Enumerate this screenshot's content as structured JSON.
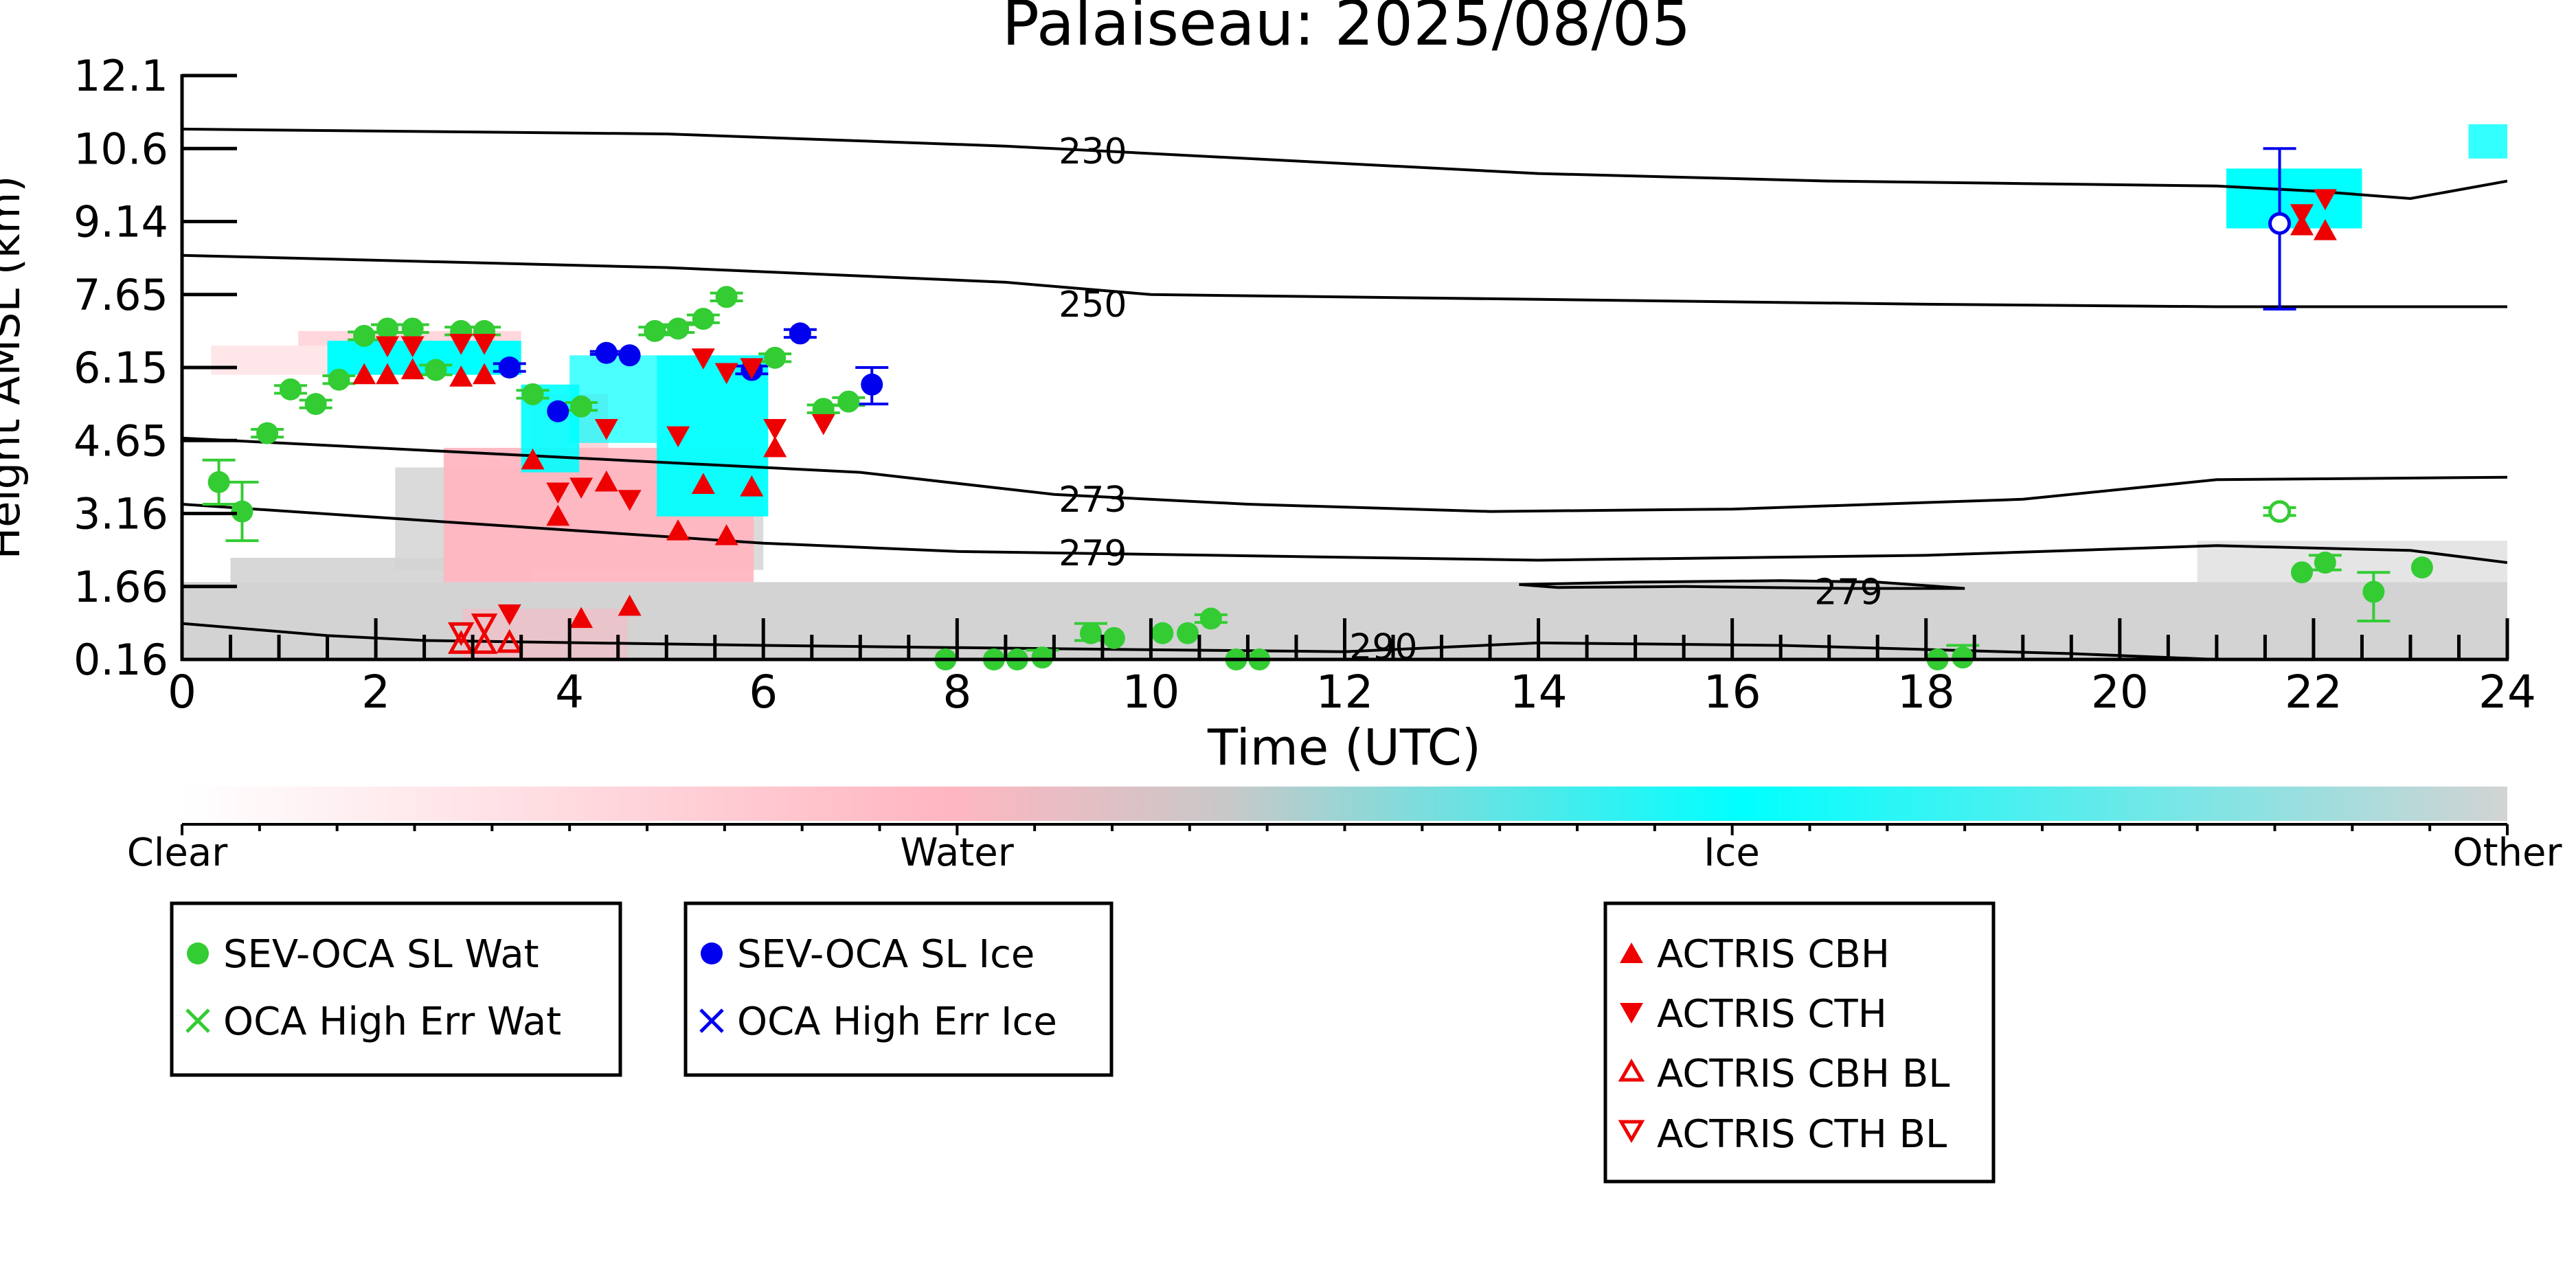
{
  "chart_data": {
    "type": "scatter",
    "title": "Palaiseau: 2025/08/05",
    "xlabel": "Time (UTC)",
    "ylabel": "Height AMSL (km)",
    "xlim": [
      0,
      24
    ],
    "x_ticks": [
      "0",
      "2",
      "4",
      "6",
      "8",
      "10",
      "12",
      "14",
      "16",
      "18",
      "20",
      "22",
      "24"
    ],
    "y_ticks": [
      "0.16",
      "1.66",
      "3.16",
      "4.65",
      "6.15",
      "7.65",
      "9.14",
      "10.6",
      "12.1"
    ],
    "ylim": [
      0.16,
      12.1
    ],
    "colorbar": {
      "labels": [
        "Clear",
        "Water",
        "Ice",
        "Other"
      ],
      "colors": [
        "#ffffff",
        "#ffb6c1",
        "#00ffff",
        "#d3d3d3"
      ]
    },
    "contour_labels": [
      {
        "label": "230",
        "x": 9.4,
        "y": 10.55
      },
      {
        "label": "250",
        "x": 9.4,
        "y": 7.45
      },
      {
        "label": "273",
        "x": 9.4,
        "y": 3.45
      },
      {
        "label": "279",
        "x": 9.4,
        "y": 2.35
      },
      {
        "label": "279",
        "x": 17.2,
        "y": 1.55
      },
      {
        "label": "290",
        "x": 12.4,
        "y": 0.42
      }
    ],
    "contours": [
      {
        "level": "230",
        "points": [
          [
            0,
            11.0
          ],
          [
            5,
            10.9
          ],
          [
            8.5,
            10.65
          ],
          [
            10,
            10.5
          ],
          [
            14,
            10.1
          ],
          [
            17,
            9.95
          ],
          [
            19,
            9.9
          ],
          [
            21,
            9.85
          ],
          [
            22,
            9.75
          ],
          [
            23,
            9.6
          ],
          [
            24,
            9.95
          ]
        ]
      },
      {
        "level": "250",
        "points": [
          [
            0,
            8.45
          ],
          [
            5,
            8.2
          ],
          [
            8.5,
            7.9
          ],
          [
            10,
            7.65
          ],
          [
            14,
            7.55
          ],
          [
            18,
            7.45
          ],
          [
            21,
            7.4
          ],
          [
            24,
            7.4
          ]
        ]
      },
      {
        "level": "273",
        "points": [
          [
            0,
            4.7
          ],
          [
            4,
            4.3
          ],
          [
            7,
            4.0
          ],
          [
            9,
            3.55
          ],
          [
            11,
            3.35
          ],
          [
            13.5,
            3.2
          ],
          [
            16,
            3.25
          ],
          [
            19,
            3.45
          ],
          [
            21,
            3.85
          ],
          [
            24,
            3.9
          ]
        ]
      },
      {
        "level": "279",
        "points": [
          [
            0,
            3.35
          ],
          [
            3,
            2.95
          ],
          [
            6,
            2.55
          ],
          [
            8,
            2.38
          ],
          [
            10,
            2.32
          ],
          [
            14,
            2.2
          ],
          [
            18,
            2.3
          ],
          [
            21,
            2.5
          ],
          [
            23,
            2.4
          ],
          [
            24,
            2.15
          ]
        ]
      },
      {
        "level": "279",
        "points": [
          [
            13.8,
            1.7
          ],
          [
            15,
            1.75
          ],
          [
            16.5,
            1.78
          ],
          [
            17.5,
            1.75
          ],
          [
            18.4,
            1.62
          ],
          [
            17.2,
            1.62
          ],
          [
            15.5,
            1.66
          ],
          [
            14.2,
            1.64
          ],
          [
            13.8,
            1.7
          ]
        ]
      },
      {
        "level": "290",
        "points": [
          [
            0,
            0.9
          ],
          [
            1.5,
            0.65
          ],
          [
            2.5,
            0.55
          ],
          [
            6,
            0.45
          ],
          [
            9,
            0.38
          ],
          [
            12,
            0.32
          ],
          [
            14,
            0.5
          ],
          [
            16.5,
            0.45
          ],
          [
            19.5,
            0.28
          ],
          [
            21,
            0.16
          ]
        ]
      }
    ],
    "sev_oca_sl_wat": [
      [
        0.38,
        3.8
      ],
      [
        0.62,
        3.2
      ],
      [
        0.88,
        4.8
      ],
      [
        1.12,
        5.7
      ],
      [
        1.38,
        5.4
      ],
      [
        1.62,
        5.9
      ],
      [
        1.88,
        6.8
      ],
      [
        2.12,
        6.95
      ],
      [
        2.38,
        6.95
      ],
      [
        2.62,
        6.1
      ],
      [
        2.88,
        6.9
      ],
      [
        3.12,
        6.9
      ],
      [
        3.62,
        5.6
      ],
      [
        4.12,
        5.35
      ],
      [
        4.88,
        6.9
      ],
      [
        5.12,
        6.95
      ],
      [
        5.38,
        7.15
      ],
      [
        5.62,
        7.6
      ],
      [
        6.12,
        6.35
      ],
      [
        6.62,
        5.3
      ],
      [
        6.88,
        5.45
      ],
      [
        7.88,
        0.16
      ],
      [
        8.38,
        0.16
      ],
      [
        8.62,
        0.16
      ],
      [
        8.88,
        0.2
      ],
      [
        9.38,
        0.7
      ],
      [
        9.62,
        0.6
      ],
      [
        10.12,
        0.7
      ],
      [
        10.38,
        0.7
      ],
      [
        10.62,
        1.0
      ],
      [
        10.88,
        0.16
      ],
      [
        11.12,
        0.16
      ],
      [
        18.12,
        0.16
      ],
      [
        18.38,
        0.2
      ],
      [
        21.88,
        1.95
      ],
      [
        22.12,
        2.15
      ],
      [
        22.62,
        1.55
      ],
      [
        23.12,
        2.05
      ]
    ],
    "sev_oca_sl_wat_open": [
      [
        21.65,
        3.2
      ]
    ],
    "sev_oca_sl_ice": [
      [
        3.38,
        6.15
      ],
      [
        3.88,
        5.25
      ],
      [
        4.38,
        6.45
      ],
      [
        4.62,
        6.4
      ],
      [
        5.88,
        6.1
      ],
      [
        6.38,
        6.85
      ],
      [
        7.12,
        5.8
      ]
    ],
    "sev_oca_sl_ice_open": [
      [
        21.65,
        9.1
      ]
    ],
    "actris_cbh": [
      [
        1.88,
        6.0
      ],
      [
        2.12,
        6.0
      ],
      [
        2.38,
        6.1
      ],
      [
        2.88,
        5.95
      ],
      [
        3.12,
        6.0
      ],
      [
        3.62,
        4.25
      ],
      [
        3.88,
        3.1
      ],
      [
        4.12,
        1.0
      ],
      [
        4.38,
        3.8
      ],
      [
        4.62,
        1.25
      ],
      [
        5.12,
        2.8
      ],
      [
        5.38,
        3.75
      ],
      [
        5.62,
        2.7
      ],
      [
        5.88,
        3.7
      ],
      [
        6.12,
        4.5
      ],
      [
        21.88,
        9.05
      ],
      [
        22.12,
        8.95
      ]
    ],
    "actris_cth": [
      [
        2.12,
        6.6
      ],
      [
        2.38,
        6.6
      ],
      [
        2.88,
        6.65
      ],
      [
        3.12,
        6.65
      ],
      [
        3.38,
        1.1
      ],
      [
        3.88,
        3.6
      ],
      [
        4.12,
        3.7
      ],
      [
        4.38,
        4.9
      ],
      [
        4.62,
        3.45
      ],
      [
        5.12,
        4.75
      ],
      [
        5.38,
        6.35
      ],
      [
        5.62,
        6.05
      ],
      [
        5.88,
        6.15
      ],
      [
        6.12,
        4.9
      ],
      [
        6.62,
        5.0
      ],
      [
        21.88,
        9.3
      ],
      [
        22.12,
        9.6
      ]
    ],
    "actris_cbh_bl": [
      [
        2.88,
        0.48
      ],
      [
        3.12,
        0.48
      ],
      [
        3.38,
        0.5
      ]
    ],
    "actris_cth_bl": [
      [
        2.88,
        0.72
      ],
      [
        3.12,
        0.9
      ]
    ],
    "error_bars": [
      {
        "x": 0.38,
        "lo": 3.35,
        "hi": 4.25
      },
      {
        "x": 0.62,
        "lo": 2.6,
        "hi": 3.8
      },
      {
        "x": 0.88,
        "lo": 4.72,
        "hi": 4.88
      },
      {
        "x": 1.12,
        "lo": 5.62,
        "hi": 5.78
      },
      {
        "x": 1.38,
        "lo": 5.32,
        "hi": 5.48
      },
      {
        "x": 1.62,
        "lo": 5.82,
        "hi": 5.98
      },
      {
        "x": 1.88,
        "lo": 6.72,
        "hi": 6.88
      },
      {
        "x": 2.12,
        "lo": 6.87,
        "hi": 7.03
      },
      {
        "x": 2.38,
        "lo": 6.87,
        "hi": 7.03
      },
      {
        "x": 2.62,
        "lo": 6.0,
        "hi": 6.2
      },
      {
        "x": 2.88,
        "lo": 6.82,
        "hi": 6.98
      },
      {
        "x": 3.12,
        "lo": 6.82,
        "hi": 6.98
      },
      {
        "x": 3.62,
        "lo": 5.52,
        "hi": 5.68
      },
      {
        "x": 4.12,
        "lo": 5.27,
        "hi": 5.43
      },
      {
        "x": 4.88,
        "lo": 6.82,
        "hi": 6.98
      },
      {
        "x": 5.12,
        "lo": 6.87,
        "hi": 7.03
      },
      {
        "x": 5.38,
        "lo": 7.07,
        "hi": 7.23
      },
      {
        "x": 5.62,
        "lo": 7.52,
        "hi": 7.68
      },
      {
        "x": 6.12,
        "lo": 6.27,
        "hi": 6.43
      },
      {
        "x": 6.62,
        "lo": 5.22,
        "hi": 5.38
      },
      {
        "x": 6.88,
        "lo": 5.37,
        "hi": 5.53
      },
      {
        "x": 8.88,
        "lo": 0.16,
        "hi": 0.35
      },
      {
        "x": 9.38,
        "lo": 0.55,
        "hi": 0.9
      },
      {
        "x": 10.62,
        "lo": 0.92,
        "hi": 1.08
      },
      {
        "x": 18.38,
        "lo": 0.16,
        "hi": 0.45
      },
      {
        "x": 22.12,
        "lo": 2.0,
        "hi": 2.3
      },
      {
        "x": 22.62,
        "lo": 0.95,
        "hi": 1.95
      },
      {
        "x": 21.65,
        "lo": 3.12,
        "hi": 3.28
      },
      {
        "x": 3.38,
        "lo": 6.07,
        "hi": 6.23
      },
      {
        "x": 4.38,
        "lo": 6.42,
        "hi": 6.48
      },
      {
        "x": 5.88,
        "lo": 6.02,
        "hi": 6.18
      },
      {
        "x": 6.38,
        "lo": 6.77,
        "hi": 6.93
      },
      {
        "x": 7.12,
        "lo": 5.4,
        "hi": 6.15
      },
      {
        "x": 21.65,
        "lo": 7.35,
        "hi": 10.6
      }
    ],
    "legends": [
      {
        "entries": [
          "SEV-OCA SL Wat",
          "OCA High Err Wat"
        ]
      },
      {
        "entries": [
          "SEV-OCA SL Ice",
          "OCA High Err Ice"
        ]
      },
      {
        "entries": [
          "ACTRIS CBH",
          "ACTRIS CTH",
          "ACTRIS CBH BL",
          "ACTRIS CTH BL"
        ]
      }
    ],
    "grid": false,
    "colors": {
      "water_marker": "#33cc33",
      "ice_marker": "#0000ee",
      "actris": "#ee0000",
      "other": "#d3d3d3",
      "water": "#ffb6c1",
      "ice": "#00ffff"
    }
  }
}
